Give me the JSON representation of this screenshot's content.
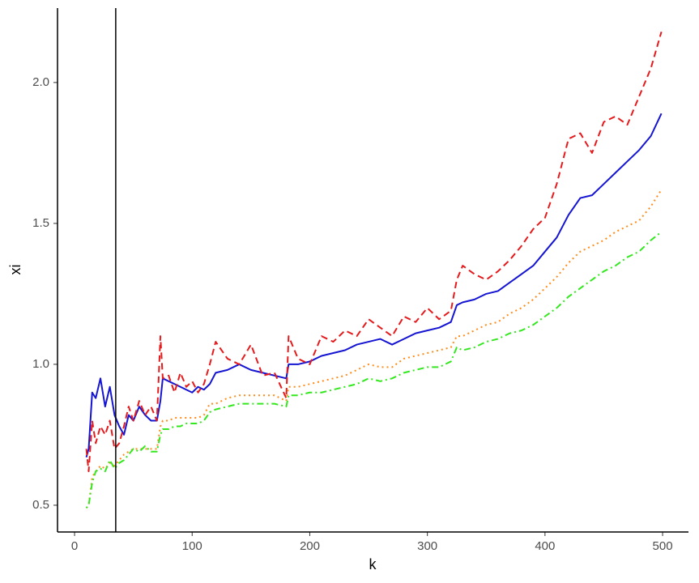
{
  "chart_data": {
    "type": "line",
    "x_label": "k",
    "y_label": "xi",
    "x": [
      10,
      12,
      15,
      18,
      22,
      26,
      30,
      34,
      38,
      42,
      46,
      50,
      55,
      60,
      65,
      70,
      73,
      75,
      80,
      85,
      90,
      95,
      100,
      105,
      110,
      115,
      120,
      130,
      140,
      150,
      160,
      170,
      180,
      182,
      190,
      200,
      210,
      220,
      230,
      240,
      250,
      260,
      270,
      280,
      290,
      300,
      310,
      320,
      325,
      330,
      340,
      350,
      360,
      370,
      380,
      390,
      400,
      410,
      420,
      430,
      440,
      450,
      460,
      470,
      480,
      490,
      499
    ],
    "series": [
      {
        "color": "#1414d2",
        "dash": "solid",
        "values": [
          0.67,
          0.7,
          0.9,
          0.88,
          0.95,
          0.85,
          0.92,
          0.82,
          0.78,
          0.75,
          0.82,
          0.8,
          0.85,
          0.82,
          0.8,
          0.8,
          0.87,
          0.95,
          0.94,
          0.93,
          0.92,
          0.91,
          0.9,
          0.92,
          0.91,
          0.93,
          0.97,
          0.98,
          1.0,
          0.98,
          0.97,
          0.96,
          0.95,
          1.0,
          1.0,
          1.01,
          1.03,
          1.04,
          1.05,
          1.07,
          1.08,
          1.09,
          1.07,
          1.09,
          1.11,
          1.12,
          1.13,
          1.15,
          1.21,
          1.22,
          1.23,
          1.25,
          1.26,
          1.29,
          1.32,
          1.35,
          1.4,
          1.45,
          1.53,
          1.59,
          1.6,
          1.64,
          1.68,
          1.72,
          1.76,
          1.81,
          1.89
        ]
      },
      {
        "color": "#e41a1c",
        "dash": "dashed",
        "values": [
          0.7,
          0.62,
          0.8,
          0.72,
          0.78,
          0.75,
          0.8,
          0.7,
          0.72,
          0.78,
          0.85,
          0.8,
          0.87,
          0.82,
          0.85,
          0.8,
          1.1,
          0.95,
          0.96,
          0.9,
          0.97,
          0.92,
          0.94,
          0.9,
          0.93,
          1.0,
          1.08,
          1.02,
          1.0,
          1.07,
          0.96,
          0.97,
          0.88,
          1.1,
          1.02,
          1.0,
          1.1,
          1.08,
          1.12,
          1.1,
          1.16,
          1.13,
          1.1,
          1.17,
          1.15,
          1.2,
          1.16,
          1.19,
          1.3,
          1.35,
          1.32,
          1.3,
          1.33,
          1.37,
          1.42,
          1.48,
          1.52,
          1.64,
          1.8,
          1.82,
          1.75,
          1.86,
          1.88,
          1.85,
          1.95,
          2.05,
          2.18
        ]
      },
      {
        "color": "#ff8c1a",
        "dash": "dotted",
        "values": [
          0.49,
          0.5,
          0.6,
          0.62,
          0.64,
          0.63,
          0.65,
          0.64,
          0.66,
          0.68,
          0.69,
          0.7,
          0.7,
          0.7,
          0.7,
          0.7,
          0.78,
          0.8,
          0.8,
          0.81,
          0.81,
          0.81,
          0.81,
          0.81,
          0.82,
          0.86,
          0.86,
          0.88,
          0.89,
          0.89,
          0.89,
          0.89,
          0.87,
          0.92,
          0.92,
          0.93,
          0.94,
          0.95,
          0.96,
          0.98,
          1.0,
          0.99,
          0.99,
          1.02,
          1.03,
          1.04,
          1.05,
          1.06,
          1.1,
          1.1,
          1.12,
          1.14,
          1.15,
          1.18,
          1.2,
          1.23,
          1.27,
          1.31,
          1.36,
          1.4,
          1.42,
          1.44,
          1.47,
          1.49,
          1.51,
          1.56,
          1.62
        ]
      },
      {
        "color": "#33e81e",
        "dash": "dotdash",
        "values": [
          0.49,
          0.5,
          0.58,
          0.62,
          0.63,
          0.62,
          0.66,
          0.63,
          0.65,
          0.66,
          0.68,
          0.7,
          0.69,
          0.71,
          0.69,
          0.69,
          0.75,
          0.77,
          0.77,
          0.78,
          0.78,
          0.79,
          0.79,
          0.79,
          0.8,
          0.83,
          0.84,
          0.85,
          0.86,
          0.86,
          0.86,
          0.86,
          0.85,
          0.89,
          0.89,
          0.9,
          0.9,
          0.91,
          0.92,
          0.93,
          0.95,
          0.94,
          0.95,
          0.97,
          0.98,
          0.99,
          0.99,
          1.01,
          1.06,
          1.05,
          1.06,
          1.08,
          1.09,
          1.11,
          1.12,
          1.14,
          1.17,
          1.2,
          1.24,
          1.27,
          1.3,
          1.33,
          1.35,
          1.38,
          1.4,
          1.44,
          1.47
        ]
      }
    ],
    "vline": 35,
    "xlim": [
      -14.5,
      522
    ],
    "ylim": [
      0.405,
      2.264
    ],
    "xticks": [
      0,
      100,
      200,
      300,
      400,
      500
    ],
    "yticks": [
      0.5,
      {
        "value": 1,
        "label": "1.0"
      },
      1.5,
      {
        "value": 2,
        "label": "2.0"
      }
    ],
    "grid": false
  }
}
